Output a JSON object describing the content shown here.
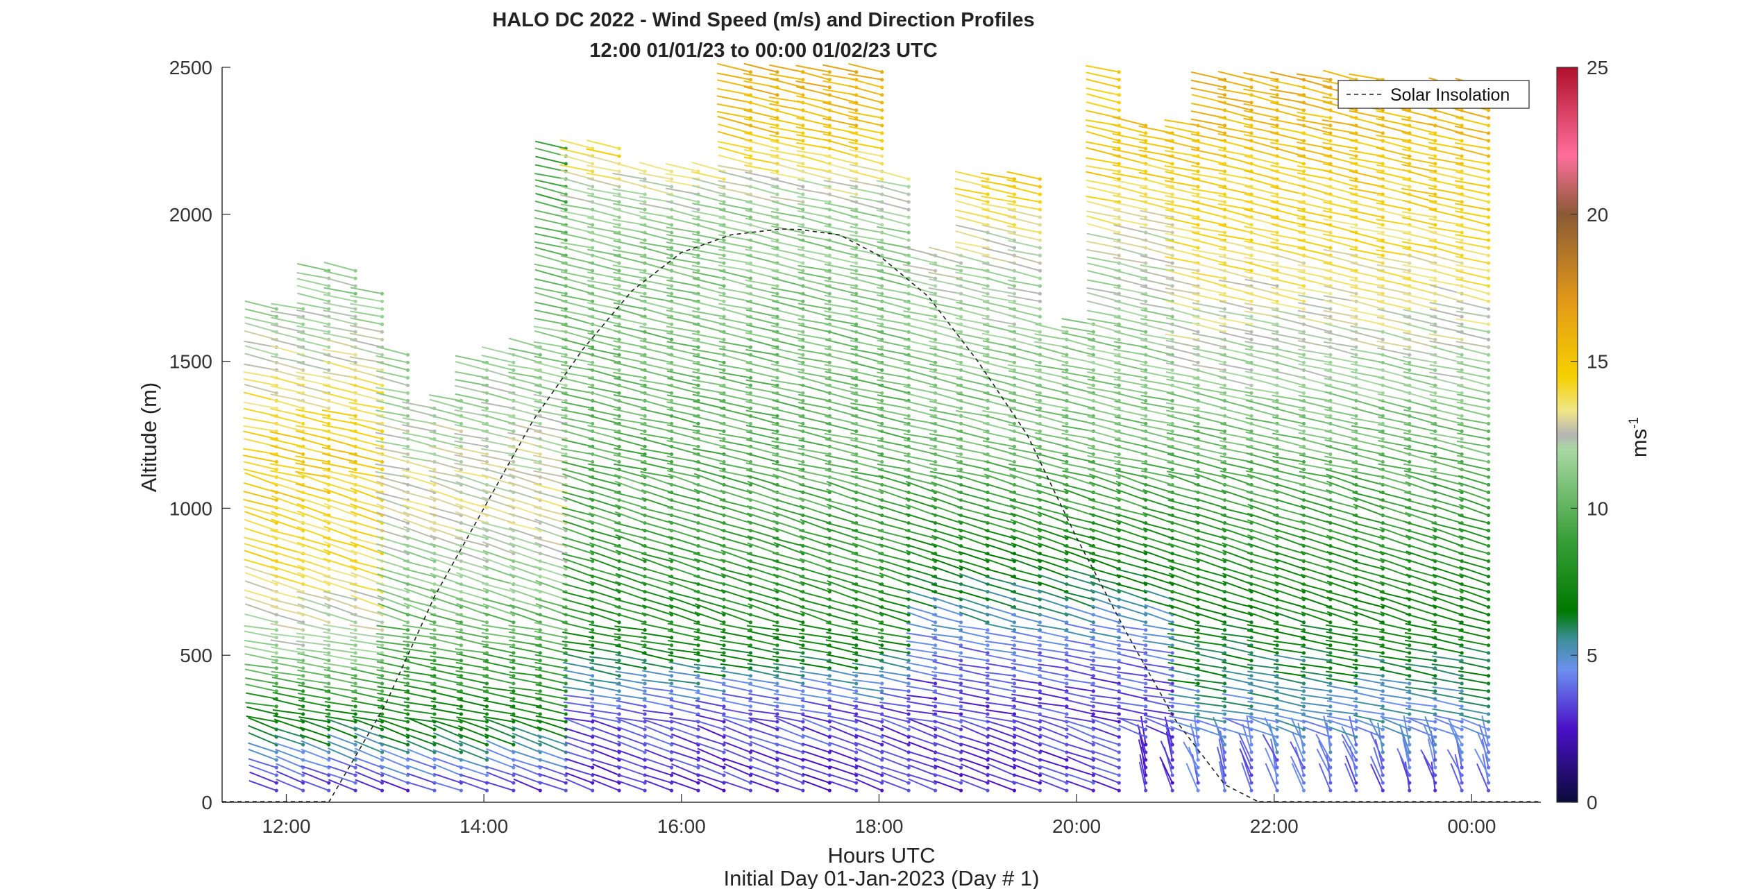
{
  "chart_data": {
    "type": "scatter",
    "title": "HALO DC 2022 - Wind Speed (m/s) and Direction Profiles",
    "subtitle": "12:00 01/01/23 to 00:00 01/02/23  UTC",
    "xlabel": "Hours UTC",
    "x_sublabel": "Initial Day 01-Jan-2023 (Day # 1)",
    "ylabel": "Altitude (m)",
    "xlim": [
      11.35,
      24.7
    ],
    "ylim": [
      0,
      2500
    ],
    "xticks": [
      {
        "value": 12,
        "label": "12:00"
      },
      {
        "value": 14,
        "label": "14:00"
      },
      {
        "value": 16,
        "label": "16:00"
      },
      {
        "value": 18,
        "label": "18:00"
      },
      {
        "value": 20,
        "label": "20:00"
      },
      {
        "value": 22,
        "label": "22:00"
      },
      {
        "value": 24,
        "label": "00:00"
      }
    ],
    "yticks": [
      0,
      500,
      1000,
      1500,
      2000,
      2500
    ],
    "grid": false,
    "colorbar": {
      "label_base": "ms",
      "label_exp": "-1",
      "range": [
        0,
        25
      ],
      "ticks": [
        0,
        5,
        10,
        15,
        20,
        25
      ],
      "colormap": [
        {
          "v": 0,
          "c": "#0b0b3a"
        },
        {
          "v": 2.5,
          "c": "#4a10c8"
        },
        {
          "v": 4.5,
          "c": "#6c90f0"
        },
        {
          "v": 5.5,
          "c": "#3f8f9e"
        },
        {
          "v": 6.5,
          "c": "#007a00"
        },
        {
          "v": 9,
          "c": "#3aa03a"
        },
        {
          "v": 12,
          "c": "#a9d8a4"
        },
        {
          "v": 12.5,
          "c": "#b4b4b4"
        },
        {
          "v": 13.3,
          "c": "#f0e68a"
        },
        {
          "v": 14.5,
          "c": "#f5d000"
        },
        {
          "v": 17,
          "c": "#e39a18"
        },
        {
          "v": 20,
          "c": "#8a5a35"
        },
        {
          "v": 22,
          "c": "#ff6f9c"
        },
        {
          "v": 25,
          "c": "#b0102a"
        }
      ]
    },
    "legend": {
      "entries": [
        "Solar Insolation"
      ],
      "placement": "top-right"
    },
    "solar_insolation": {
      "style": "dashed",
      "color": "#222222",
      "x": [
        12.43,
        13.0,
        13.5,
        14.0,
        14.5,
        15.0,
        15.5,
        16.0,
        16.5,
        17.0,
        17.2,
        17.6,
        18.0,
        18.5,
        19.0,
        19.5,
        20.0,
        20.5,
        21.0,
        21.5,
        21.85
      ],
      "y": [
        0,
        330,
        700,
        1000,
        1300,
        1540,
        1740,
        1870,
        1930,
        1950,
        1948,
        1930,
        1860,
        1720,
        1500,
        1250,
        900,
        580,
        280,
        60,
        0
      ]
    },
    "wind_profiles": {
      "times": [
        11.9,
        12.17,
        12.43,
        12.7,
        12.97,
        13.23,
        13.5,
        13.77,
        14.03,
        14.3,
        14.57,
        14.83,
        15.1,
        15.37,
        15.63,
        15.9,
        16.17,
        16.43,
        16.7,
        16.97,
        17.23,
        17.5,
        17.77,
        18.03,
        18.3,
        18.57,
        18.83,
        19.1,
        19.37,
        19.63,
        19.9,
        20.17,
        20.43,
        20.7,
        20.97,
        21.23,
        21.5,
        21.77,
        22.03,
        22.3,
        22.57,
        22.83,
        23.1,
        23.37,
        23.63,
        23.9,
        24.17
      ],
      "gate_spacing_m": 26,
      "first_gate_m": 40,
      "top_m": [
        1690,
        1690,
        1810,
        1810,
        1740,
        1530,
        1350,
        1390,
        1510,
        1530,
        1550,
        2230,
        2230,
        2230,
        2150,
        2150,
        2150,
        2150,
        2500,
        2500,
        2500,
        2500,
        2500,
        2500,
        2130,
        1860,
        1870,
        2130,
        2130,
        2130,
        1620,
        1650,
        2500,
        2320,
        2300,
        2310,
        2460,
        2460,
        2460,
        2460,
        2460,
        2460,
        2460,
        2450,
        2450,
        2450,
        2450
      ],
      "speed_profile_by_time": [
        {
          "range": [
            11.8,
            13.2
          ],
          "layers": [
            {
              "z": 0,
              "v": 2.5
            },
            {
              "z": 150,
              "v": 5.0
            },
            {
              "z": 300,
              "v": 7.5
            },
            {
              "z": 500,
              "v": 11.5
            },
            {
              "z": 800,
              "v": 14.0
            },
            {
              "z": 1200,
              "v": 14.8
            },
            {
              "z": 1700,
              "v": 11.5
            }
          ]
        },
        {
          "range": [
            13.2,
            15.0
          ],
          "layers": [
            {
              "z": 0,
              "v": 2.8
            },
            {
              "z": 200,
              "v": 6.0
            },
            {
              "z": 400,
              "v": 8.5
            },
            {
              "z": 700,
              "v": 11.0
            },
            {
              "z": 1000,
              "v": 13.0
            },
            {
              "z": 1300,
              "v": 12.0
            },
            {
              "z": 2200,
              "v": 9.0
            }
          ]
        },
        {
          "range": [
            15.0,
            18.5
          ],
          "layers": [
            {
              "z": 0,
              "v": 2.8
            },
            {
              "z": 300,
              "v": 3.5
            },
            {
              "z": 550,
              "v": 7.5
            },
            {
              "z": 1000,
              "v": 9.5
            },
            {
              "z": 1500,
              "v": 10.5
            },
            {
              "z": 2000,
              "v": 11.5
            },
            {
              "z": 2300,
              "v": 15.5
            },
            {
              "z": 2500,
              "v": 16.0
            }
          ]
        },
        {
          "range": [
            18.5,
            21.0
          ],
          "layers": [
            {
              "z": 0,
              "v": 3.0
            },
            {
              "z": 400,
              "v": 3.5
            },
            {
              "z": 600,
              "v": 5.0
            },
            {
              "z": 900,
              "v": 8.0
            },
            {
              "z": 1200,
              "v": 10.5
            },
            {
              "z": 1800,
              "v": 12.0
            },
            {
              "z": 2200,
              "v": 15.0
            }
          ]
        },
        {
          "range": [
            21.0,
            24.3
          ],
          "layers": [
            {
              "z": 0,
              "v": 3.5
            },
            {
              "z": 300,
              "v": 5.0
            },
            {
              "z": 600,
              "v": 7.0
            },
            {
              "z": 1000,
              "v": 9.0
            },
            {
              "z": 1400,
              "v": 11.5
            },
            {
              "z": 1800,
              "v": 13.5
            },
            {
              "z": 2200,
              "v": 15.0
            },
            {
              "z": 2450,
              "v": 16.0
            }
          ]
        }
      ]
    }
  }
}
